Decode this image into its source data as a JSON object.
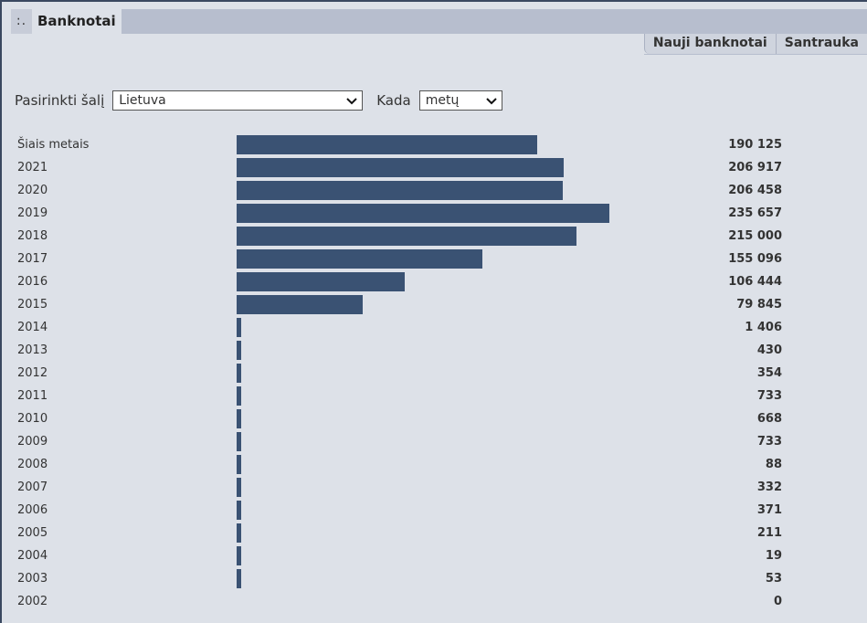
{
  "header": {
    "icon": ":.",
    "title": "Banknotai"
  },
  "tabs": [
    {
      "label": "Nauji banknotai"
    },
    {
      "label": "Santrauka"
    }
  ],
  "filters": {
    "country_label": "Pasirinkti šalį",
    "country_value": "Lietuva",
    "period_label": "Kada",
    "period_value": "metų"
  },
  "chart_data": {
    "type": "bar",
    "orientation": "horizontal",
    "categories": [
      "Šiais metais",
      "2021",
      "2020",
      "2019",
      "2018",
      "2017",
      "2016",
      "2015",
      "2014",
      "2013",
      "2012",
      "2011",
      "2010",
      "2009",
      "2008",
      "2007",
      "2006",
      "2005",
      "2004",
      "2003",
      "2002"
    ],
    "values": [
      190125,
      206917,
      206458,
      235657,
      215000,
      155096,
      106444,
      79845,
      1406,
      430,
      354,
      733,
      668,
      733,
      88,
      332,
      371,
      211,
      19,
      53,
      0
    ],
    "value_labels": [
      "190 125",
      "206 917",
      "206 458",
      "235 657",
      "215 000",
      "155 096",
      "106 444",
      "79 845",
      "1 406",
      "430",
      "354",
      "733",
      "668",
      "733",
      "88",
      "332",
      "371",
      "211",
      "19",
      "53",
      "0"
    ],
    "bar_color": "#3a5273",
    "xlim": [
      0,
      235657
    ]
  }
}
